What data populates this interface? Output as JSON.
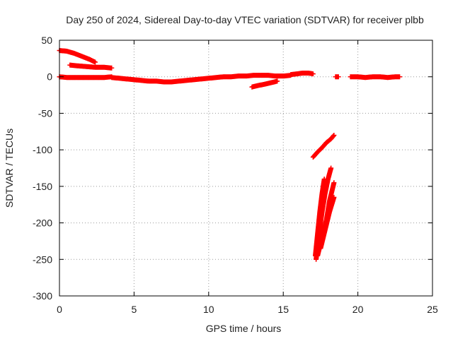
{
  "chart_data": {
    "type": "scatter",
    "title": "Day 250 of 2024, Sidereal Day-to-day VTEC variation (SDTVAR) for receiver plbb",
    "xlabel": "GPS time / hours",
    "ylabel": "SDTVAR / TECUs",
    "xlim": [
      0,
      25
    ],
    "ylim": [
      -300,
      50
    ],
    "xticks": [
      "0",
      "5",
      "10",
      "15",
      "20",
      "25"
    ],
    "yticks": [
      "50",
      "0",
      "-50",
      "-100",
      "-150",
      "-200",
      "-250",
      "-300"
    ],
    "grid": true,
    "marker": "plus",
    "series_color": "#ff0000",
    "segments": [
      {
        "x": [
          0.0,
          0.5,
          1.0,
          1.5,
          2.0,
          2.4
        ],
        "y": [
          36,
          35,
          32,
          28,
          24,
          20
        ]
      },
      {
        "x": [
          0.7,
          1.2,
          1.8,
          2.4,
          3.0,
          3.5
        ],
        "y": [
          16,
          15,
          14,
          13,
          13,
          12
        ]
      },
      {
        "x": [
          0.0,
          0.5,
          1.0,
          1.5,
          2.0,
          2.5,
          3.0,
          3.5
        ],
        "y": [
          0,
          -1,
          -1,
          -1,
          -1,
          -1,
          -1,
          0
        ]
      },
      {
        "x": [
          3.5,
          4.0,
          4.5,
          5.0,
          5.5,
          6.0,
          6.5,
          7.0,
          7.5,
          8.0,
          8.5,
          9.0,
          9.5,
          10.0,
          10.5,
          11.0,
          11.5,
          12.0,
          12.5,
          13.0,
          13.5,
          14.0,
          14.5,
          15.0,
          15.5
        ],
        "y": [
          -1,
          -2,
          -3,
          -4,
          -5,
          -6,
          -6,
          -7,
          -7,
          -6,
          -5,
          -4,
          -3,
          -2,
          -1,
          0,
          0,
          1,
          1,
          2,
          2,
          2,
          1,
          1,
          2
        ]
      },
      {
        "x": [
          12.9,
          13.3,
          13.8,
          14.2,
          14.6
        ],
        "y": [
          -14,
          -12,
          -10,
          -8,
          -6
        ]
      },
      {
        "x": [
          15.5,
          15.9,
          16.3,
          16.7,
          17.0
        ],
        "y": [
          3,
          4,
          5,
          5,
          4
        ]
      },
      {
        "x": [
          17.0,
          17.3,
          17.6,
          17.9,
          18.2,
          18.4
        ],
        "y": [
          -110,
          -103,
          -97,
          -90,
          -85,
          -80
        ]
      },
      {
        "x": [
          17.15,
          17.3,
          17.45,
          17.6,
          17.75
        ],
        "y": [
          -245,
          -215,
          -185,
          -160,
          -140
        ]
      },
      {
        "x": [
          17.2,
          17.4,
          17.6,
          17.8,
          18.0,
          18.2
        ],
        "y": [
          -250,
          -215,
          -185,
          -160,
          -140,
          -125
        ]
      },
      {
        "x": [
          17.3,
          17.6,
          17.9,
          18.1,
          18.4
        ],
        "y": [
          -245,
          -220,
          -195,
          -170,
          -145
        ]
      },
      {
        "x": [
          17.5,
          17.8,
          18.1,
          18.4
        ],
        "y": [
          -235,
          -210,
          -185,
          -165
        ]
      },
      {
        "x": [
          18.5,
          18.7
        ],
        "y": [
          0,
          0
        ]
      },
      {
        "x": [
          19.5,
          20.0,
          20.5,
          21.0,
          21.5,
          22.0,
          22.5,
          22.8
        ],
        "y": [
          0,
          0,
          -1,
          0,
          0,
          -1,
          0,
          0
        ]
      }
    ]
  }
}
